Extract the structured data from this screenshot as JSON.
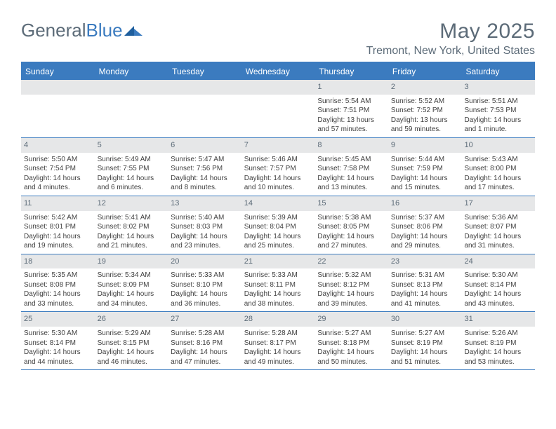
{
  "logo": {
    "text1": "General",
    "text2": "Blue"
  },
  "title": "May 2025",
  "location": "Tremont, New York, United States",
  "accent_color": "#3b7bbf",
  "header_bg": "#3b7bbf",
  "date_bar_bg": "#e6e7e8",
  "text_color": "#5c6b78",
  "day_names": [
    "Sunday",
    "Monday",
    "Tuesday",
    "Wednesday",
    "Thursday",
    "Friday",
    "Saturday"
  ],
  "weeks": [
    [
      null,
      null,
      null,
      null,
      {
        "d": "1",
        "sr": "5:54 AM",
        "ss": "7:51 PM",
        "dl": "13 hours and 57 minutes."
      },
      {
        "d": "2",
        "sr": "5:52 AM",
        "ss": "7:52 PM",
        "dl": "13 hours and 59 minutes."
      },
      {
        "d": "3",
        "sr": "5:51 AM",
        "ss": "7:53 PM",
        "dl": "14 hours and 1 minute."
      }
    ],
    [
      {
        "d": "4",
        "sr": "5:50 AM",
        "ss": "7:54 PM",
        "dl": "14 hours and 4 minutes."
      },
      {
        "d": "5",
        "sr": "5:49 AM",
        "ss": "7:55 PM",
        "dl": "14 hours and 6 minutes."
      },
      {
        "d": "6",
        "sr": "5:47 AM",
        "ss": "7:56 PM",
        "dl": "14 hours and 8 minutes."
      },
      {
        "d": "7",
        "sr": "5:46 AM",
        "ss": "7:57 PM",
        "dl": "14 hours and 10 minutes."
      },
      {
        "d": "8",
        "sr": "5:45 AM",
        "ss": "7:58 PM",
        "dl": "14 hours and 13 minutes."
      },
      {
        "d": "9",
        "sr": "5:44 AM",
        "ss": "7:59 PM",
        "dl": "14 hours and 15 minutes."
      },
      {
        "d": "10",
        "sr": "5:43 AM",
        "ss": "8:00 PM",
        "dl": "14 hours and 17 minutes."
      }
    ],
    [
      {
        "d": "11",
        "sr": "5:42 AM",
        "ss": "8:01 PM",
        "dl": "14 hours and 19 minutes."
      },
      {
        "d": "12",
        "sr": "5:41 AM",
        "ss": "8:02 PM",
        "dl": "14 hours and 21 minutes."
      },
      {
        "d": "13",
        "sr": "5:40 AM",
        "ss": "8:03 PM",
        "dl": "14 hours and 23 minutes."
      },
      {
        "d": "14",
        "sr": "5:39 AM",
        "ss": "8:04 PM",
        "dl": "14 hours and 25 minutes."
      },
      {
        "d": "15",
        "sr": "5:38 AM",
        "ss": "8:05 PM",
        "dl": "14 hours and 27 minutes."
      },
      {
        "d": "16",
        "sr": "5:37 AM",
        "ss": "8:06 PM",
        "dl": "14 hours and 29 minutes."
      },
      {
        "d": "17",
        "sr": "5:36 AM",
        "ss": "8:07 PM",
        "dl": "14 hours and 31 minutes."
      }
    ],
    [
      {
        "d": "18",
        "sr": "5:35 AM",
        "ss": "8:08 PM",
        "dl": "14 hours and 33 minutes."
      },
      {
        "d": "19",
        "sr": "5:34 AM",
        "ss": "8:09 PM",
        "dl": "14 hours and 34 minutes."
      },
      {
        "d": "20",
        "sr": "5:33 AM",
        "ss": "8:10 PM",
        "dl": "14 hours and 36 minutes."
      },
      {
        "d": "21",
        "sr": "5:33 AM",
        "ss": "8:11 PM",
        "dl": "14 hours and 38 minutes."
      },
      {
        "d": "22",
        "sr": "5:32 AM",
        "ss": "8:12 PM",
        "dl": "14 hours and 39 minutes."
      },
      {
        "d": "23",
        "sr": "5:31 AM",
        "ss": "8:13 PM",
        "dl": "14 hours and 41 minutes."
      },
      {
        "d": "24",
        "sr": "5:30 AM",
        "ss": "8:14 PM",
        "dl": "14 hours and 43 minutes."
      }
    ],
    [
      {
        "d": "25",
        "sr": "5:30 AM",
        "ss": "8:14 PM",
        "dl": "14 hours and 44 minutes."
      },
      {
        "d": "26",
        "sr": "5:29 AM",
        "ss": "8:15 PM",
        "dl": "14 hours and 46 minutes."
      },
      {
        "d": "27",
        "sr": "5:28 AM",
        "ss": "8:16 PM",
        "dl": "14 hours and 47 minutes."
      },
      {
        "d": "28",
        "sr": "5:28 AM",
        "ss": "8:17 PM",
        "dl": "14 hours and 49 minutes."
      },
      {
        "d": "29",
        "sr": "5:27 AM",
        "ss": "8:18 PM",
        "dl": "14 hours and 50 minutes."
      },
      {
        "d": "30",
        "sr": "5:27 AM",
        "ss": "8:19 PM",
        "dl": "14 hours and 51 minutes."
      },
      {
        "d": "31",
        "sr": "5:26 AM",
        "ss": "8:19 PM",
        "dl": "14 hours and 53 minutes."
      }
    ]
  ],
  "labels": {
    "sunrise": "Sunrise: ",
    "sunset": "Sunset: ",
    "daylight": "Daylight: "
  }
}
